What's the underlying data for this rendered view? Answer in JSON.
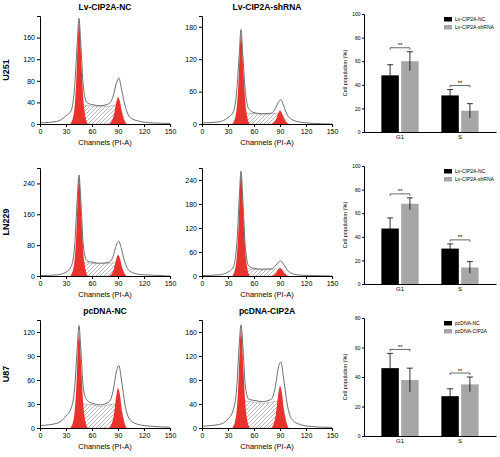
{
  "row_labels": [
    "U251",
    "LN229",
    "U87"
  ],
  "chart_data": [
    {
      "type": "area",
      "title": "Lv-CIP2A-NC",
      "x_label": "Channels (PI-A)",
      "xlim": [
        0,
        150
      ],
      "xticks": [
        0,
        30,
        60,
        90,
        120,
        150
      ],
      "ylim": [
        0,
        200
      ],
      "yticks": [
        0,
        40,
        80,
        120,
        160
      ],
      "series": [
        {
          "type": "hatch",
          "color": "#8c8c8c",
          "x": [
            42,
            45,
            50,
            60,
            70,
            80,
            88,
            94,
            98
          ],
          "values": [
            0,
            28,
            35,
            33,
            32,
            33,
            35,
            25,
            0
          ]
        },
        {
          "type": "area",
          "color": "#e8322b",
          "x": [
            35,
            39,
            42,
            44,
            45,
            46,
            48,
            51,
            55
          ],
          "values": [
            0,
            19,
            86,
            171,
            190,
            175,
            105,
            29,
            0
          ]
        },
        {
          "type": "area",
          "color": "#e8322b",
          "x": [
            80,
            85,
            88,
            90,
            92,
            95,
            100
          ],
          "values": [
            0,
            15,
            40,
            50,
            43,
            18,
            0
          ]
        },
        {
          "type": "line",
          "color": "#6e6e6e",
          "x": [
            0,
            20,
            30,
            36,
            40,
            43,
            45,
            47,
            50,
            54,
            60,
            70,
            80,
            85,
            88,
            91,
            94,
            98,
            104,
            115,
            130,
            150
          ],
          "values": [
            2,
            5,
            15,
            25,
            70,
            150,
            196,
            150,
            70,
            40,
            36,
            34,
            38,
            55,
            75,
            85,
            65,
            35,
            12,
            5,
            2,
            1
          ]
        }
      ]
    },
    {
      "type": "area",
      "title": "Lv-CIP2A-shRNA",
      "x_label": "Channels (PI-A)",
      "xlim": [
        0,
        150
      ],
      "xticks": [
        0,
        30,
        60,
        90,
        120,
        150
      ],
      "ylim": [
        0,
        200
      ],
      "yticks": [
        0,
        60,
        120,
        180
      ],
      "series": [
        {
          "type": "hatch",
          "color": "#8c8c8c",
          "x": [
            42,
            45,
            50,
            60,
            70,
            80,
            88,
            94,
            98
          ],
          "values": [
            0,
            16,
            20,
            19,
            18,
            19,
            20,
            14,
            0
          ]
        },
        {
          "type": "area",
          "color": "#e8322b",
          "x": [
            35,
            39,
            42,
            44,
            45,
            46,
            48,
            51,
            55
          ],
          "values": [
            0,
            17,
            74,
            149,
            165,
            152,
            91,
            25,
            0
          ]
        },
        {
          "type": "area",
          "color": "#e8322b",
          "x": [
            80,
            85,
            88,
            90,
            92,
            95,
            100
          ],
          "values": [
            0,
            8,
            20,
            25,
            21,
            9,
            0
          ]
        },
        {
          "type": "line",
          "color": "#6e6e6e",
          "x": [
            0,
            20,
            30,
            36,
            40,
            43,
            45,
            47,
            50,
            54,
            60,
            70,
            80,
            85,
            88,
            91,
            94,
            98,
            104,
            115,
            130,
            150
          ],
          "values": [
            2,
            4,
            12,
            22,
            60,
            130,
            175,
            130,
            60,
            28,
            21,
            19,
            20,
            30,
            40,
            45,
            35,
            18,
            8,
            3,
            1,
            0
          ]
        }
      ]
    },
    {
      "type": "bar",
      "categories": [
        "G1",
        "S"
      ],
      "y_label": "Cell population (%)",
      "ylim": [
        0,
        100
      ],
      "yticks": [
        0,
        20,
        40,
        60,
        80,
        100
      ],
      "legend": "upper right",
      "annotations": [
        "**",
        "**"
      ],
      "series": [
        {
          "name": "Lv-CIP2A-NC",
          "color": "#000000",
          "values": [
            48,
            31
          ],
          "errors": [
            9,
            5
          ]
        },
        {
          "name": "Lv-CIP2A-shRNA",
          "color": "#a6a6a6",
          "values": [
            60,
            18
          ],
          "errors": [
            8,
            6
          ]
        }
      ]
    },
    {
      "type": "area",
      "x_label": "Channels (PI-A)",
      "xlim": [
        0,
        150
      ],
      "xticks": [
        0,
        30,
        60,
        90,
        120,
        150
      ],
      "ylim": [
        0,
        280
      ],
      "yticks": [
        0,
        80,
        160,
        240
      ],
      "series": [
        {
          "type": "hatch",
          "color": "#8c8c8c",
          "x": [
            42,
            45,
            50,
            60,
            70,
            80,
            88,
            94,
            98
          ],
          "values": [
            0,
            28,
            35,
            33,
            32,
            33,
            35,
            25,
            0
          ]
        },
        {
          "type": "area",
          "color": "#e8322b",
          "x": [
            35,
            39,
            42,
            44,
            45,
            46,
            48,
            51,
            55
          ],
          "values": [
            0,
            26,
            115,
            230,
            255,
            235,
            140,
            38,
            0
          ]
        },
        {
          "type": "area",
          "color": "#e8322b",
          "x": [
            80,
            85,
            88,
            90,
            92,
            95,
            100
          ],
          "values": [
            0,
            17,
            44,
            55,
            47,
            19,
            0
          ]
        },
        {
          "type": "line",
          "color": "#6e6e6e",
          "x": [
            0,
            20,
            30,
            36,
            40,
            43,
            45,
            47,
            50,
            54,
            60,
            70,
            80,
            85,
            88,
            91,
            94,
            98,
            104,
            115,
            130,
            150
          ],
          "values": [
            1,
            3,
            10,
            25,
            80,
            200,
            262,
            200,
            80,
            40,
            36,
            33,
            36,
            55,
            80,
            90,
            70,
            35,
            12,
            4,
            2,
            0
          ]
        }
      ]
    },
    {
      "type": "area",
      "x_label": "Channels (PI-A)",
      "xlim": [
        0,
        150
      ],
      "xticks": [
        0,
        30,
        60,
        90,
        120,
        150
      ],
      "ylim": [
        0,
        270
      ],
      "yticks": [
        0,
        60,
        120,
        180,
        240
      ],
      "series": [
        {
          "type": "hatch",
          "color": "#8c8c8c",
          "x": [
            42,
            45,
            50,
            60,
            70,
            80,
            88,
            94,
            98
          ],
          "values": [
            0,
            14,
            18,
            17,
            16,
            17,
            18,
            13,
            0
          ]
        },
        {
          "type": "area",
          "color": "#e8322b",
          "x": [
            35,
            39,
            42,
            44,
            45,
            46,
            48,
            51,
            55
          ],
          "values": [
            0,
            26,
            115,
            230,
            255,
            235,
            140,
            38,
            0
          ]
        },
        {
          "type": "area",
          "color": "#e8322b",
          "x": [
            80,
            85,
            88,
            90,
            92,
            95,
            100
          ],
          "values": [
            0,
            6,
            16,
            20,
            17,
            7,
            0
          ]
        },
        {
          "type": "line",
          "color": "#6e6e6e",
          "x": [
            0,
            20,
            30,
            36,
            40,
            43,
            45,
            47,
            50,
            54,
            60,
            70,
            80,
            85,
            88,
            91,
            94,
            98,
            104,
            115,
            130,
            150
          ],
          "values": [
            1,
            3,
            10,
            22,
            75,
            195,
            262,
            195,
            72,
            25,
            19,
            17,
            18,
            26,
            34,
            38,
            30,
            16,
            6,
            2,
            1,
            0
          ]
        }
      ]
    },
    {
      "type": "bar",
      "categories": [
        "G1",
        "S"
      ],
      "y_label": "Cell population (%)",
      "ylim": [
        0,
        100
      ],
      "yticks": [
        0,
        20,
        40,
        60,
        80,
        100
      ],
      "legend": "upper right",
      "annotations": [
        "**",
        "**"
      ],
      "series": [
        {
          "name": "Lv-CIP2A-NC",
          "color": "#000000",
          "values": [
            47,
            30
          ],
          "errors": [
            9,
            4
          ]
        },
        {
          "name": "Lv-CIP2A-shRNA",
          "color": "#a6a6a6",
          "values": [
            68,
            14
          ],
          "errors": [
            5,
            5
          ]
        }
      ]
    },
    {
      "type": "area",
      "title": "pcDNA-NC",
      "x_label": "Channels (PI-A)",
      "xlim": [
        0,
        150
      ],
      "xticks": [
        0,
        30,
        60,
        90,
        120,
        150
      ],
      "ylim": [
        0,
        135
      ],
      "yticks": [
        0,
        30,
        60,
        90,
        120
      ],
      "series": [
        {
          "type": "hatch",
          "color": "#8c8c8c",
          "x": [
            42,
            45,
            50,
            60,
            70,
            80,
            88,
            94,
            98
          ],
          "values": [
            0,
            24,
            30,
            29,
            27,
            29,
            30,
            21,
            0
          ]
        },
        {
          "type": "area",
          "color": "#e8322b",
          "x": [
            35,
            39,
            42,
            44,
            45,
            46,
            48,
            51,
            55
          ],
          "values": [
            0,
            12,
            54,
            108,
            120,
            110,
            66,
            18,
            0
          ]
        },
        {
          "type": "area",
          "color": "#e8322b",
          "x": [
            80,
            85,
            88,
            90,
            92,
            95,
            100
          ],
          "values": [
            0,
            15,
            40,
            50,
            43,
            18,
            0
          ]
        },
        {
          "type": "line",
          "color": "#6e6e6e",
          "x": [
            0,
            20,
            30,
            36,
            40,
            43,
            45,
            47,
            50,
            54,
            60,
            70,
            80,
            85,
            88,
            91,
            94,
            98,
            104,
            115,
            130,
            150
          ],
          "values": [
            3,
            6,
            15,
            25,
            50,
            100,
            128,
            100,
            50,
            35,
            31,
            29,
            33,
            50,
            70,
            78,
            60,
            30,
            10,
            4,
            2,
            1
          ]
        }
      ]
    },
    {
      "type": "area",
      "title": "pcDNA-CIP2A",
      "x_label": "Channels (PI-A)",
      "xlim": [
        0,
        150
      ],
      "xticks": [
        0,
        30,
        60,
        90,
        120,
        150
      ],
      "ylim": [
        0,
        180
      ],
      "yticks": [
        0,
        40,
        80,
        120,
        160
      ],
      "series": [
        {
          "type": "hatch",
          "color": "#8c8c8c",
          "x": [
            42,
            45,
            50,
            60,
            70,
            80,
            88,
            94,
            98
          ],
          "values": [
            0,
            36,
            45,
            43,
            41,
            43,
            45,
            32,
            0
          ]
        },
        {
          "type": "area",
          "color": "#e8322b",
          "x": [
            35,
            39,
            42,
            44,
            45,
            46,
            48,
            51,
            55
          ],
          "values": [
            0,
            17,
            74,
            149,
            165,
            152,
            91,
            25,
            0
          ]
        },
        {
          "type": "area",
          "color": "#e8322b",
          "x": [
            80,
            85,
            88,
            90,
            92,
            95,
            100
          ],
          "values": [
            0,
            21,
            56,
            70,
            60,
            25,
            0
          ]
        },
        {
          "type": "line",
          "color": "#6e6e6e",
          "x": [
            0,
            20,
            30,
            36,
            40,
            43,
            45,
            47,
            50,
            54,
            60,
            70,
            80,
            85,
            88,
            91,
            94,
            98,
            104,
            115,
            130,
            150
          ],
          "values": [
            3,
            6,
            15,
            30,
            65,
            140,
            172,
            140,
            70,
            48,
            46,
            44,
            48,
            72,
            100,
            110,
            85,
            42,
            14,
            5,
            2,
            1
          ]
        }
      ]
    },
    {
      "type": "bar",
      "categories": [
        "G1",
        "S"
      ],
      "y_label": "Cell population (%)",
      "ylim": [
        0,
        80
      ],
      "yticks": [
        0,
        20,
        40,
        60,
        80
      ],
      "legend": "upper right",
      "annotations": [
        "**",
        "**"
      ],
      "series": [
        {
          "name": "pcDNA-NC",
          "color": "#000000",
          "values": [
            46,
            27
          ],
          "errors": [
            10,
            5
          ]
        },
        {
          "name": "pcDNA-CIP2A",
          "color": "#a6a6a6",
          "values": [
            38,
            35
          ],
          "errors": [
            8,
            5
          ]
        }
      ]
    }
  ]
}
